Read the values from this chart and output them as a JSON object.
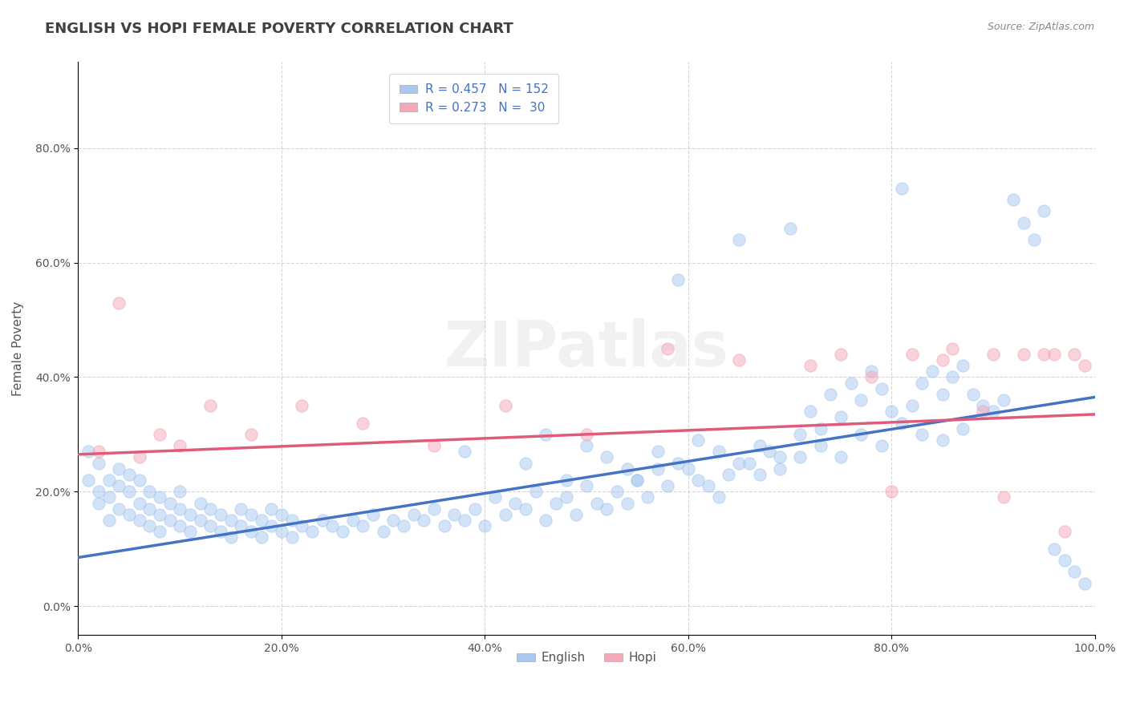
{
  "title": "ENGLISH VS HOPI FEMALE POVERTY CORRELATION CHART",
  "source": "Source: ZipAtlas.com",
  "xlabel": "",
  "ylabel": "Female Poverty",
  "watermark": "ZIPatlas",
  "english_R": 0.457,
  "english_N": 152,
  "hopi_R": 0.273,
  "hopi_N": 30,
  "english_color": "#a8c8f0",
  "english_line_color": "#4472c4",
  "hopi_color": "#f4a8b8",
  "hopi_line_color": "#e05a7a",
  "background_color": "#ffffff",
  "grid_color": "#cccccc",
  "title_color": "#404040",
  "legend_text_color": "#4472c4",
  "xlim": [
    0,
    1
  ],
  "ylim": [
    -0.05,
    0.95
  ],
  "x_ticks": [
    0.0,
    0.2,
    0.4,
    0.6,
    0.8,
    1.0
  ],
  "x_tick_labels": [
    "0.0%",
    "20.0%",
    "40.0%",
    "60.0%",
    "80.0%",
    "100.0%"
  ],
  "y_ticks": [
    0.0,
    0.2,
    0.4,
    0.6,
    0.8
  ],
  "y_tick_labels": [
    "0.0%",
    "20.0%",
    "40.0%",
    "60.0%",
    "80.0%"
  ],
  "english_scatter_x": [
    0.01,
    0.01,
    0.02,
    0.02,
    0.02,
    0.03,
    0.03,
    0.03,
    0.04,
    0.04,
    0.04,
    0.05,
    0.05,
    0.05,
    0.06,
    0.06,
    0.06,
    0.07,
    0.07,
    0.07,
    0.08,
    0.08,
    0.08,
    0.09,
    0.09,
    0.1,
    0.1,
    0.1,
    0.11,
    0.11,
    0.12,
    0.12,
    0.13,
    0.13,
    0.14,
    0.14,
    0.15,
    0.15,
    0.16,
    0.16,
    0.17,
    0.17,
    0.18,
    0.18,
    0.19,
    0.19,
    0.2,
    0.2,
    0.21,
    0.21,
    0.22,
    0.23,
    0.24,
    0.25,
    0.26,
    0.27,
    0.28,
    0.29,
    0.3,
    0.31,
    0.32,
    0.33,
    0.34,
    0.35,
    0.36,
    0.37,
    0.38,
    0.39,
    0.4,
    0.41,
    0.42,
    0.43,
    0.44,
    0.45,
    0.46,
    0.47,
    0.48,
    0.49,
    0.5,
    0.51,
    0.52,
    0.53,
    0.54,
    0.55,
    0.56,
    0.57,
    0.58,
    0.59,
    0.6,
    0.61,
    0.62,
    0.63,
    0.64,
    0.65,
    0.66,
    0.67,
    0.68,
    0.69,
    0.7,
    0.71,
    0.72,
    0.73,
    0.74,
    0.75,
    0.76,
    0.77,
    0.78,
    0.79,
    0.8,
    0.81,
    0.82,
    0.83,
    0.84,
    0.85,
    0.86,
    0.87,
    0.88,
    0.89,
    0.9,
    0.91,
    0.92,
    0.93,
    0.94,
    0.95,
    0.96,
    0.97,
    0.98,
    0.99,
    0.38,
    0.44,
    0.46,
    0.48,
    0.5,
    0.52,
    0.54,
    0.55,
    0.57,
    0.59,
    0.61,
    0.63,
    0.65,
    0.67,
    0.69,
    0.71,
    0.73,
    0.75,
    0.77,
    0.79,
    0.81,
    0.83,
    0.85,
    0.87
  ],
  "english_scatter_y": [
    0.22,
    0.27,
    0.18,
    0.25,
    0.2,
    0.15,
    0.22,
    0.19,
    0.17,
    0.24,
    0.21,
    0.16,
    0.23,
    0.2,
    0.15,
    0.22,
    0.18,
    0.14,
    0.2,
    0.17,
    0.13,
    0.19,
    0.16,
    0.15,
    0.18,
    0.14,
    0.17,
    0.2,
    0.13,
    0.16,
    0.15,
    0.18,
    0.14,
    0.17,
    0.13,
    0.16,
    0.15,
    0.12,
    0.17,
    0.14,
    0.13,
    0.16,
    0.15,
    0.12,
    0.14,
    0.17,
    0.13,
    0.16,
    0.15,
    0.12,
    0.14,
    0.13,
    0.15,
    0.14,
    0.13,
    0.15,
    0.14,
    0.16,
    0.13,
    0.15,
    0.14,
    0.16,
    0.15,
    0.17,
    0.14,
    0.16,
    0.15,
    0.17,
    0.14,
    0.19,
    0.16,
    0.18,
    0.17,
    0.2,
    0.15,
    0.18,
    0.19,
    0.16,
    0.21,
    0.18,
    0.17,
    0.2,
    0.18,
    0.22,
    0.19,
    0.24,
    0.21,
    0.57,
    0.24,
    0.22,
    0.21,
    0.19,
    0.23,
    0.64,
    0.25,
    0.23,
    0.27,
    0.24,
    0.66,
    0.26,
    0.34,
    0.31,
    0.37,
    0.33,
    0.39,
    0.36,
    0.41,
    0.38,
    0.34,
    0.73,
    0.35,
    0.39,
    0.41,
    0.37,
    0.4,
    0.42,
    0.37,
    0.35,
    0.34,
    0.36,
    0.71,
    0.67,
    0.64,
    0.69,
    0.1,
    0.08,
    0.06,
    0.04,
    0.27,
    0.25,
    0.3,
    0.22,
    0.28,
    0.26,
    0.24,
    0.22,
    0.27,
    0.25,
    0.29,
    0.27,
    0.25,
    0.28,
    0.26,
    0.3,
    0.28,
    0.26,
    0.3,
    0.28,
    0.32,
    0.3,
    0.29,
    0.31
  ],
  "hopi_scatter_x": [
    0.02,
    0.04,
    0.06,
    0.08,
    0.1,
    0.13,
    0.17,
    0.22,
    0.28,
    0.35,
    0.42,
    0.5,
    0.58,
    0.65,
    0.72,
    0.78,
    0.82,
    0.86,
    0.89,
    0.91,
    0.93,
    0.95,
    0.97,
    0.98,
    0.99,
    0.75,
    0.8,
    0.85,
    0.9,
    0.96
  ],
  "hopi_scatter_y": [
    0.27,
    0.53,
    0.26,
    0.3,
    0.28,
    0.35,
    0.3,
    0.35,
    0.32,
    0.28,
    0.35,
    0.3,
    0.45,
    0.43,
    0.42,
    0.4,
    0.44,
    0.45,
    0.34,
    0.19,
    0.44,
    0.44,
    0.13,
    0.44,
    0.42,
    0.44,
    0.2,
    0.43,
    0.44,
    0.44
  ],
  "english_line_x": [
    0.0,
    1.0
  ],
  "english_line_y_start": 0.085,
  "english_line_y_end": 0.365,
  "hopi_line_x": [
    0.0,
    1.0
  ],
  "hopi_line_y_start": 0.265,
  "hopi_line_y_end": 0.335,
  "marker_size": 120,
  "marker_alpha": 0.5,
  "line_width": 2.5
}
